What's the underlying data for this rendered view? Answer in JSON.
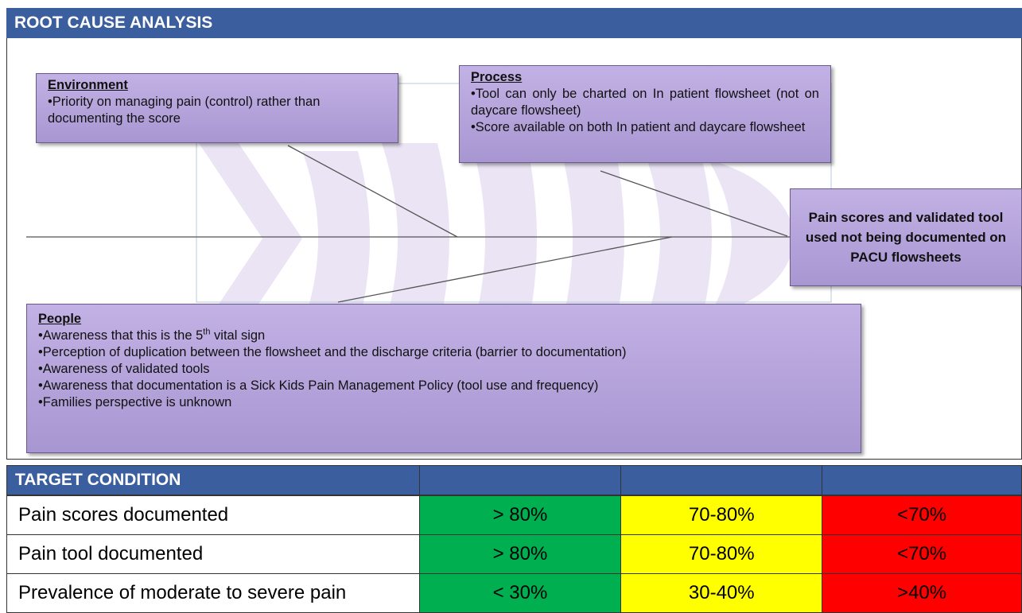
{
  "header": {
    "title": "ROOT CAUSE ANALYSIS"
  },
  "fishbone": {
    "environment": {
      "title": "Environment",
      "items": [
        "Priority on managing pain  (control) rather than documenting the score"
      ]
    },
    "process": {
      "title": "Process",
      "items": [
        "Tool can only be charted on In patient flowsheet (not on daycare flowsheet)",
        "Score available on both In patient and daycare flowsheet"
      ]
    },
    "effect": "Pain scores and validated tool used not being documented on PACU flowsheets",
    "people": {
      "title": "People",
      "items": [
        {
          "text": "Awareness that this is the 5",
          "sup": "th",
          "rest": " vital sign"
        },
        "Perception of duplication between the flowsheet and the discharge criteria (barrier to documentation)",
        "Awareness of validated tools",
        "Awareness that documentation is a Sick Kids Pain Management Policy (tool use and frequency)",
        "Families perspective is unknown"
      ]
    }
  },
  "table": {
    "title": "TARGET CONDITION",
    "rows": [
      [
        "Pain scores documented",
        "> 80%",
        "70-80%",
        "<70%"
      ],
      [
        "Pain tool documented",
        "> 80%",
        "70-80%",
        "<70%"
      ],
      [
        "Prevalence of moderate to severe pain",
        "< 30%",
        "30-40%",
        ">40%"
      ]
    ]
  }
}
